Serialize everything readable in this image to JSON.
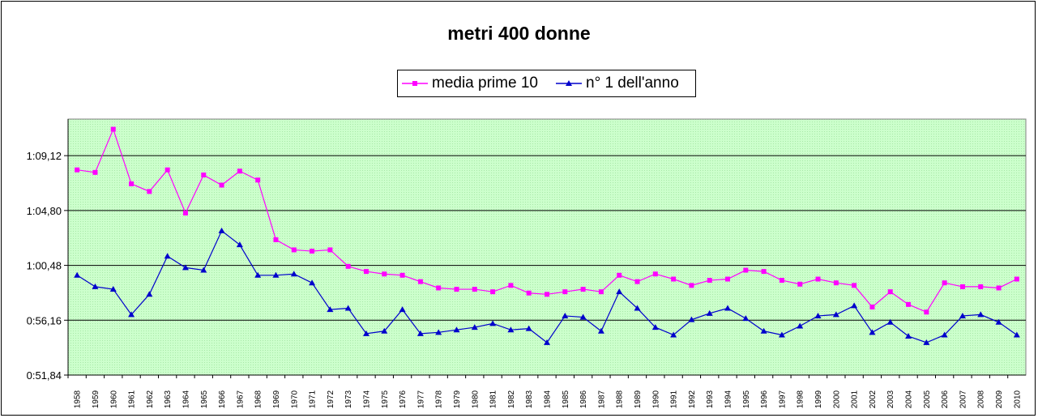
{
  "chart_data": {
    "type": "line",
    "title": "metri 400 donne",
    "xlabel": "",
    "ylabel": "",
    "y_tick_labels": [
      "0:51,84",
      "0:56,16",
      "1:00,48",
      "1:04,80",
      "1:09,12"
    ],
    "y_tick_values_sec": [
      51.84,
      56.16,
      60.48,
      64.8,
      69.12
    ],
    "ylim": [
      51.84,
      72.0
    ],
    "grid": "horizontal",
    "legend_position": "top",
    "categories": [
      "1958",
      "1959",
      "1960",
      "1961",
      "1962",
      "1963",
      "1964",
      "1965",
      "1966",
      "1967",
      "1968",
      "1969",
      "1970",
      "1971",
      "1972",
      "1973",
      "1974",
      "1975",
      "1976",
      "1977",
      "1978",
      "1979",
      "1980",
      "1981",
      "1982",
      "1983",
      "1984",
      "1985",
      "1986",
      "1987",
      "1988",
      "1989",
      "1990",
      "1991",
      "1992",
      "1993",
      "1994",
      "1995",
      "1996",
      "1997",
      "1998",
      "1999",
      "2000",
      "2001",
      "2002",
      "2003",
      "2004",
      "2005",
      "2006",
      "2007",
      "2008",
      "2009",
      "2010"
    ],
    "series": [
      {
        "name": "media prime 10",
        "color": "#ff00ff",
        "marker": "square",
        "values": [
          68.0,
          67.8,
          71.2,
          66.9,
          66.3,
          68.0,
          64.6,
          67.6,
          66.8,
          67.9,
          67.2,
          62.5,
          61.7,
          61.6,
          61.7,
          60.4,
          60.0,
          59.8,
          59.7,
          59.2,
          58.7,
          58.6,
          58.6,
          58.4,
          58.9,
          58.3,
          58.2,
          58.4,
          58.6,
          58.4,
          59.7,
          59.2,
          59.8,
          59.4,
          58.9,
          59.3,
          59.4,
          60.1,
          60.0,
          59.3,
          59.0,
          59.4,
          59.1,
          58.9,
          57.2,
          58.4,
          57.4,
          56.8,
          59.1,
          58.8,
          58.8,
          58.7,
          59.4
        ]
      },
      {
        "name": "n° 1 dell'anno",
        "color": "#0000cc",
        "marker": "triangle",
        "values": [
          59.7,
          58.8,
          58.6,
          56.6,
          58.2,
          61.2,
          60.3,
          60.1,
          63.2,
          62.1,
          59.7,
          59.7,
          59.8,
          59.1,
          57.0,
          57.1,
          55.1,
          55.3,
          57.0,
          55.1,
          55.2,
          55.4,
          55.6,
          55.9,
          55.4,
          55.5,
          54.4,
          56.5,
          56.4,
          55.3,
          58.4,
          57.1,
          55.6,
          55.0,
          56.2,
          56.7,
          57.1,
          56.3,
          55.3,
          55.0,
          55.7,
          56.5,
          56.6,
          57.3,
          55.2,
          56.0,
          54.9,
          54.4,
          55.0,
          56.5,
          56.6,
          56.0,
          55.0
        ]
      }
    ]
  }
}
